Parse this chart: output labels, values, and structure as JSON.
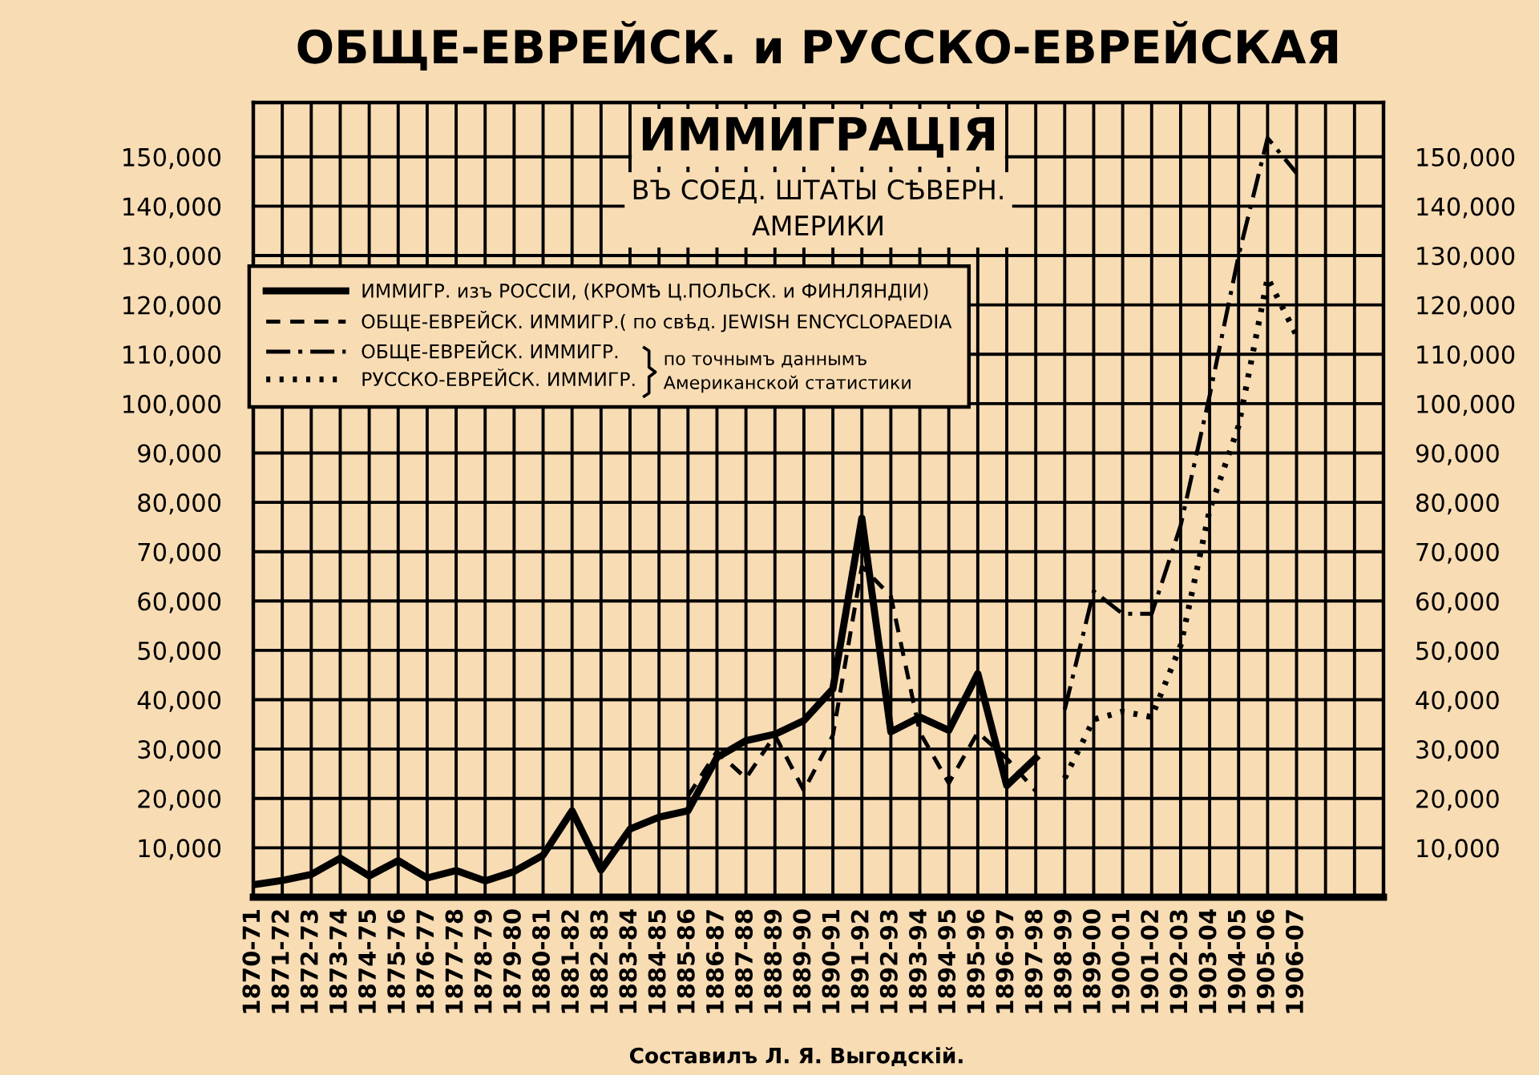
{
  "chart_data": {
    "type": "line",
    "title": "ОБЩЕ-ЕВРЕЙСК. и РУССКО-ЕВРЕЙСКАЯ\nИММИГРАЦІЯ",
    "subtitle": "ВЪ СОЕД. ШТАТЫ СѢВЕРН.\nАМЕРИКИ",
    "categories": [
      "1870-71",
      "1871-72",
      "1872-73",
      "1873-74",
      "1874-75",
      "1875-76",
      "1876-77",
      "1877-78",
      "1878-79",
      "1879-80",
      "1880-81",
      "1881-82",
      "1882-83",
      "1883-84",
      "1884-85",
      "1885-86",
      "1886-87",
      "1887-88",
      "1888-89",
      "1889-90",
      "1890-91",
      "1891-92",
      "1892-93",
      "1893-94",
      "1894-95",
      "1895-96",
      "1896-97",
      "1897-98",
      "1898-99",
      "1899-00",
      "1900-01",
      "1901-02",
      "1902-03",
      "1903-04",
      "1904-05",
      "1905-06",
      "1906-07"
    ],
    "series": [
      {
        "name": "ИММИГР. изъ РОССІИ, (КРОМѢ Ц.ПОЛЬСК. и ФИНЛЯНДІИ)",
        "color": "#000000",
        "line_style": "solid",
        "values": [
          2500,
          3400,
          4600,
          7900,
          4300,
          7400,
          3900,
          5400,
          3300,
          5200,
          8500,
          17500,
          5500,
          13800,
          16200,
          17500,
          28300,
          31700,
          33000,
          35800,
          42200,
          76800,
          33500,
          36500,
          33800,
          45300,
          22600,
          28200,
          null,
          null,
          null,
          null,
          null,
          null,
          null,
          null,
          null
        ]
      },
      {
        "name": "ОБЩЕ-ЕВРЕЙСК. ИММИГР.( по свѣд. JEWISH ENCYCLOPAEDIA",
        "color": "#000000",
        "line_style": "dashed",
        "values": [
          null,
          null,
          null,
          null,
          null,
          null,
          null,
          null,
          null,
          null,
          null,
          null,
          null,
          null,
          null,
          20500,
          29500,
          24100,
          32800,
          21600,
          32800,
          67000,
          61000,
          33400,
          23100,
          33400,
          28100,
          21500,
          null,
          null,
          null,
          null,
          null,
          null,
          null,
          null,
          null
        ]
      },
      {
        "name": "ОБЩЕ-ЕВРЕЙСК. ИММИГР.",
        "color": "#000000",
        "line_style": "dashdot",
        "values": [
          null,
          null,
          null,
          null,
          null,
          null,
          null,
          null,
          null,
          null,
          null,
          null,
          null,
          null,
          null,
          null,
          null,
          null,
          null,
          null,
          null,
          null,
          null,
          null,
          null,
          null,
          null,
          null,
          38000,
          62000,
          57400,
          57400,
          75300,
          101600,
          130000,
          153800,
          146700
        ]
      },
      {
        "name": "РУССКО-ЕВРЕЙСК. ИММИГР.",
        "color": "#000000",
        "line_style": "dotted",
        "values": [
          null,
          null,
          null,
          null,
          null,
          null,
          null,
          null,
          null,
          null,
          null,
          null,
          null,
          null,
          null,
          null,
          null,
          null,
          null,
          null,
          null,
          null,
          null,
          null,
          null,
          null,
          null,
          null,
          24100,
          36000,
          37600,
          36500,
          51000,
          78400,
          95500,
          125500,
          113800
        ]
      }
    ],
    "ylim": [
      0,
      161000
    ],
    "yticks": [
      {
        "value": 10000,
        "label": "10,000"
      },
      {
        "value": 20000,
        "label": "20,000"
      },
      {
        "value": 30000,
        "label": "30,000"
      },
      {
        "value": 40000,
        "label": "40,000"
      },
      {
        "value": 50000,
        "label": "50,000"
      },
      {
        "value": 60000,
        "label": "60,000"
      },
      {
        "value": 70000,
        "label": "70,000"
      },
      {
        "value": 80000,
        "label": "80,000"
      },
      {
        "value": 90000,
        "label": "90,000"
      },
      {
        "value": 100000,
        "label": "100,000"
      },
      {
        "value": 110000,
        "label": "110,000"
      },
      {
        "value": 120000,
        "label": "120,000"
      },
      {
        "value": 130000,
        "label": "130,000"
      },
      {
        "value": 140000,
        "label": "140,000"
      },
      {
        "value": 150000,
        "label": "150,000"
      }
    ],
    "y2lim": [
      0,
      161000
    ],
    "y2ticks": [
      {
        "value": 10000,
        "label": "10,000"
      },
      {
        "value": 20000,
        "label": "20,000"
      },
      {
        "value": 30000,
        "label": "30,000"
      },
      {
        "value": 40000,
        "label": "40,000"
      },
      {
        "value": 50000,
        "label": "50,000"
      },
      {
        "value": 60000,
        "label": "60,000"
      },
      {
        "value": 70000,
        "label": "70,000"
      },
      {
        "value": 80000,
        "label": "80,000"
      },
      {
        "value": 90000,
        "label": "90,000"
      },
      {
        "value": 100000,
        "label": "100,000"
      },
      {
        "value": 110000,
        "label": "110,000"
      },
      {
        "value": 120000,
        "label": "120,000"
      },
      {
        "value": 130000,
        "label": "130,000"
      },
      {
        "value": 140000,
        "label": "140,000"
      },
      {
        "value": 150000,
        "label": "150,000"
      }
    ],
    "grid": true,
    "legend": "top left",
    "annotations": [
      "по точнымъ даннымъ\nАмериканской статистики",
      "Составилъ Л. Я. Выгодскій."
    ]
  }
}
